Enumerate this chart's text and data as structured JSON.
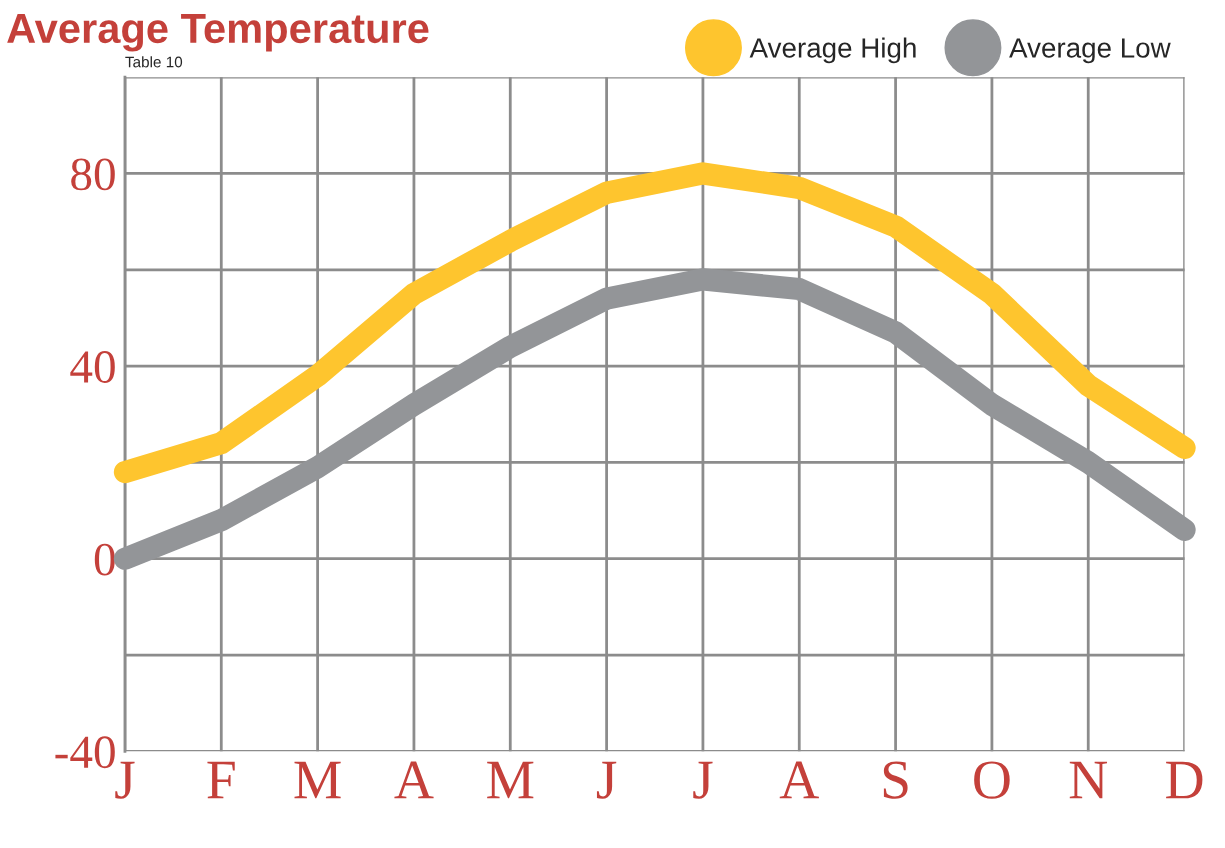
{
  "chart_data": {
    "type": "line",
    "title": "Average Temperature",
    "annotations": [
      "Table 10"
    ],
    "categories": [
      "J",
      "F",
      "M",
      "A",
      "M",
      "J",
      "J",
      "A",
      "S",
      "O",
      "N",
      "D"
    ],
    "series": [
      {
        "name": "Average High",
        "color": "#fec52e",
        "values": [
          18,
          24,
          38,
          55,
          66,
          76,
          80,
          77,
          69,
          55,
          36,
          23
        ]
      },
      {
        "name": "Average Low",
        "color": "#939598",
        "values": [
          0,
          8,
          19,
          32,
          44,
          54,
          58,
          56,
          47,
          32,
          20,
          6
        ]
      }
    ],
    "ylim": [
      -40,
      100
    ],
    "yticks": [
      -40,
      {
        "value": -20,
        "label": null
      },
      0,
      {
        "value": 20,
        "label": null
      },
      40,
      {
        "value": 60,
        "label": null
      },
      80,
      {
        "value": 100,
        "label": null
      }
    ],
    "grid": true,
    "legend": "top right",
    "line_style": "solid"
  }
}
